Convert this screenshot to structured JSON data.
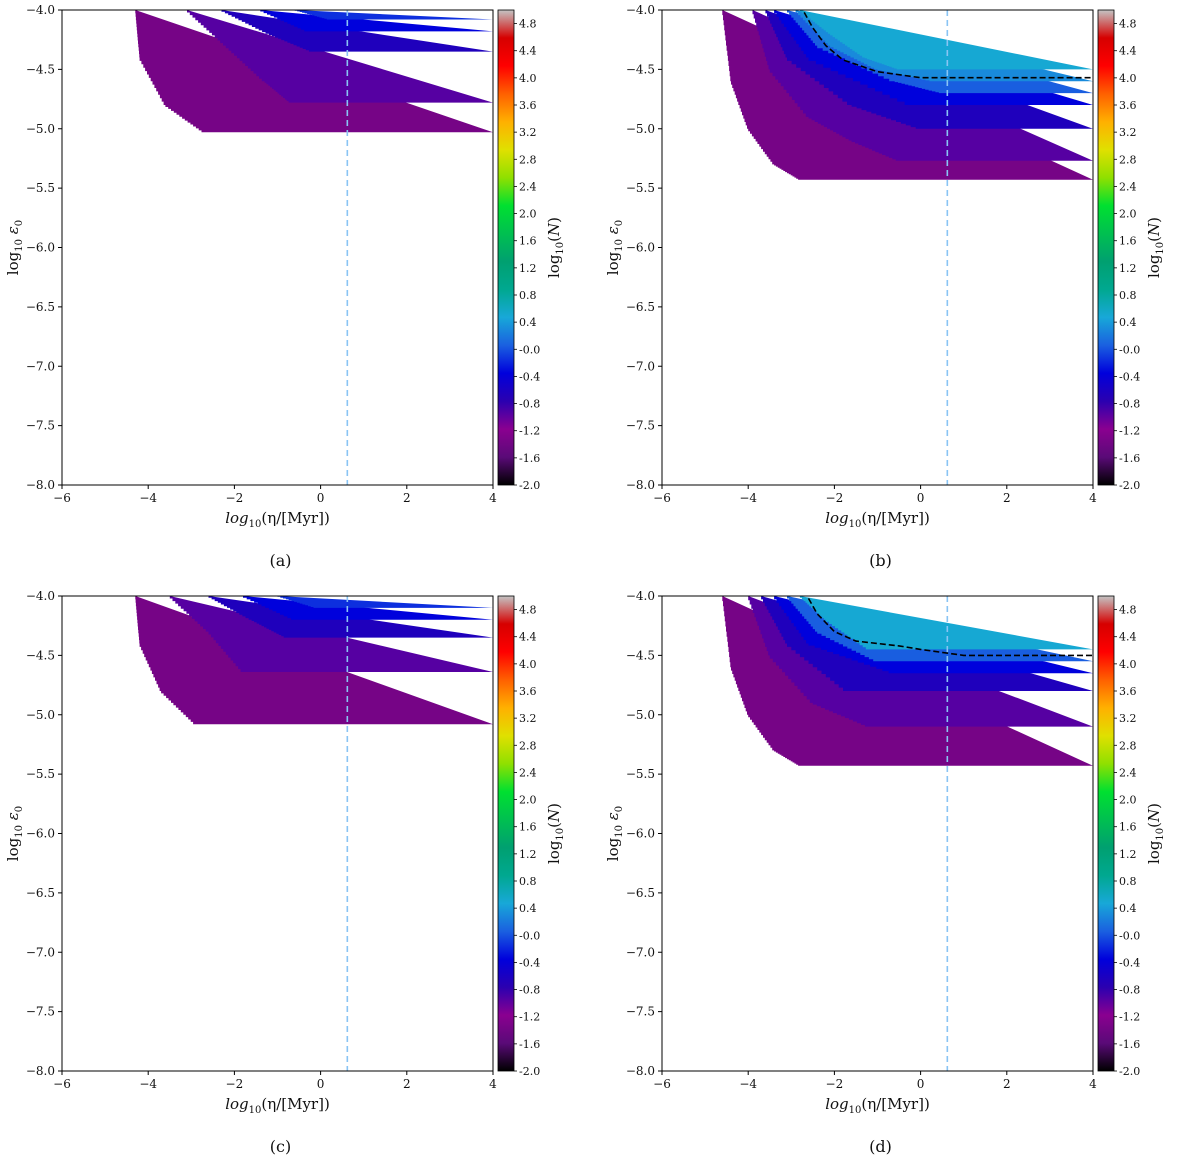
{
  "figure": {
    "colorbar_label": "log10(N)",
    "colormap_colors": [
      "#000000",
      "#5a0a78",
      "#8a0090",
      "#2b00b0",
      "#0000dc",
      "#1a60e0",
      "#18a8d8",
      "#00a890",
      "#00a070",
      "#00c050",
      "#00e030",
      "#90e000",
      "#e0e000",
      "#ffb000",
      "#ff6000",
      "#ff0000",
      "#d60000",
      "#c4c4c4"
    ],
    "contour_color": "#000000",
    "reference_line_color": "#89c4f4"
  },
  "chart_data": [
    {
      "type": "heatmap",
      "panel_label": "(a)",
      "xlabel": "log10(η/[Myr])",
      "ylabel": "log10 ε0",
      "xlim": [
        -6,
        4
      ],
      "ylim": [
        -8,
        -4
      ],
      "xticks": [
        "−6",
        "−4",
        "−2",
        "0",
        "2",
        "4"
      ],
      "yticks": [
        "−8.0",
        "−7.5",
        "−7.0",
        "−6.5",
        "−6.0",
        "−5.5",
        "−5.0",
        "−4.5",
        "−4.0"
      ],
      "clim": [
        -2.0,
        5.0
      ],
      "colorbar_ticks": [
        "4.8",
        "4.4",
        "4.0",
        "3.6",
        "3.2",
        "2.8",
        "2.4",
        "2.0",
        "1.6",
        "1.2",
        "0.8",
        "0.4",
        "-0.0",
        "-0.4",
        "-0.8",
        "-1.2",
        "-1.6",
        "-2.0"
      ],
      "reference_x": 0.62,
      "regions": [
        {
          "log10N": -1.35,
          "y_low": -5.03,
          "edge": [
            [
              -4.0,
              -4.3
            ],
            [
              -4.4,
              -4.2
            ],
            [
              -4.8,
              -3.6
            ],
            [
              -5.03,
              -2.7
            ]
          ]
        },
        {
          "log10N": -0.95,
          "y_low": -4.78,
          "edge": [
            [
              -4.0,
              -3.1
            ],
            [
              -4.3,
              -2.2
            ],
            [
              -4.6,
              -1.3
            ],
            [
              -4.78,
              -0.7
            ]
          ]
        },
        {
          "log10N": -0.65,
          "y_low": -4.35,
          "edge": [
            [
              -4.0,
              -2.3
            ],
            [
              -4.2,
              -1.2
            ],
            [
              -4.35,
              -0.2
            ]
          ]
        },
        {
          "log10N": -0.35,
          "y_low": -4.18,
          "edge": [
            [
              -4.0,
              -1.4
            ],
            [
              -4.18,
              -0.3
            ]
          ]
        },
        {
          "log10N": -0.15,
          "y_low": -4.08,
          "edge": [
            [
              -4.0,
              -0.6
            ],
            [
              -4.08,
              0.2
            ]
          ]
        }
      ],
      "contour": []
    },
    {
      "type": "heatmap",
      "panel_label": "(b)",
      "xlabel": "log10(η/[Myr])",
      "ylabel": "log10 ε0",
      "xlim": [
        -6,
        4
      ],
      "ylim": [
        -8,
        -4
      ],
      "xticks": [
        "−6",
        "−4",
        "−2",
        "0",
        "2",
        "4"
      ],
      "yticks": [
        "−8.0",
        "−7.5",
        "−7.0",
        "−6.5",
        "−6.0",
        "−5.5",
        "−5.0",
        "−4.5",
        "−4.0"
      ],
      "clim": [
        -2.0,
        5.0
      ],
      "colorbar_ticks": [
        "4.8",
        "4.4",
        "4.0",
        "3.6",
        "3.2",
        "2.8",
        "2.4",
        "2.0",
        "1.6",
        "1.2",
        "0.8",
        "0.4",
        "-0.0",
        "-0.4",
        "-0.8",
        "-1.2",
        "-1.6",
        "-2.0"
      ],
      "reference_x": 0.62,
      "regions": [
        {
          "log10N": -1.35,
          "y_low": -5.43,
          "edge": [
            [
              -4.0,
              -4.6
            ],
            [
              -4.6,
              -4.4
            ],
            [
              -5.0,
              -4.0
            ],
            [
              -5.3,
              -3.4
            ],
            [
              -5.43,
              -2.8
            ]
          ]
        },
        {
          "log10N": -0.95,
          "y_low": -5.27,
          "edge": [
            [
              -4.0,
              -3.9
            ],
            [
              -4.5,
              -3.5
            ],
            [
              -4.9,
              -2.6
            ],
            [
              -5.1,
              -1.6
            ],
            [
              -5.27,
              -0.5
            ]
          ]
        },
        {
          "log10N": -0.65,
          "y_low": -5.0,
          "edge": [
            [
              -4.0,
              -3.6
            ],
            [
              -4.4,
              -3.1
            ],
            [
              -4.8,
              -1.6
            ],
            [
              -5.0,
              0.0
            ]
          ]
        },
        {
          "log10N": -0.35,
          "y_low": -4.8,
          "edge": [
            [
              -4.0,
              -3.4
            ],
            [
              -4.4,
              -2.6
            ],
            [
              -4.8,
              -0.2
            ]
          ]
        },
        {
          "log10N": 0.05,
          "y_low": -4.7,
          "edge": [
            [
              -4.0,
              -3.1
            ],
            [
              -4.3,
              -2.4
            ],
            [
              -4.6,
              -0.6
            ],
            [
              -4.7,
              0.5
            ]
          ]
        },
        {
          "log10N": 0.3,
          "y_low": -4.6,
          "edge": [
            [
              -4.0,
              -2.9
            ],
            [
              -4.3,
              -2.1
            ],
            [
              -4.5,
              -1.0
            ],
            [
              -4.6,
              0.3
            ]
          ]
        },
        {
          "log10N": 0.5,
          "y_low": -4.5,
          "edge": [
            [
              -4.0,
              -2.8
            ],
            [
              -4.2,
              -2.1
            ],
            [
              -4.4,
              -1.3
            ],
            [
              -4.5,
              -0.5
            ]
          ]
        }
      ],
      "contour": [
        [
          -2.7,
          -4.02
        ],
        [
          -2.5,
          -4.15
        ],
        [
          -2.2,
          -4.3
        ],
        [
          -1.8,
          -4.42
        ],
        [
          -1.0,
          -4.52
        ],
        [
          0.0,
          -4.57
        ],
        [
          2.0,
          -4.57
        ],
        [
          4.0,
          -4.57
        ]
      ]
    },
    {
      "type": "heatmap",
      "panel_label": "(c)",
      "xlabel": "log10(η/[Myr])",
      "ylabel": "log10 ε0",
      "xlim": [
        -6,
        4
      ],
      "ylim": [
        -8,
        -4
      ],
      "xticks": [
        "−6",
        "−4",
        "−2",
        "0",
        "2",
        "4"
      ],
      "yticks": [
        "−8.0",
        "−7.5",
        "−7.0",
        "−6.5",
        "−6.0",
        "−5.5",
        "−5.0",
        "−4.5",
        "−4.0"
      ],
      "clim": [
        -2.0,
        5.0
      ],
      "colorbar_ticks": [
        "4.8",
        "4.4",
        "4.0",
        "3.6",
        "3.2",
        "2.8",
        "2.4",
        "2.0",
        "1.6",
        "1.2",
        "0.8",
        "0.4",
        "-0.0",
        "-0.4",
        "-0.8",
        "-1.2",
        "-1.6",
        "-2.0"
      ],
      "reference_x": 0.62,
      "regions": [
        {
          "log10N": -1.35,
          "y_low": -5.08,
          "edge": [
            [
              -4.0,
              -4.3
            ],
            [
              -4.4,
              -4.2
            ],
            [
              -4.8,
              -3.7
            ],
            [
              -5.08,
              -2.9
            ]
          ]
        },
        {
          "log10N": -0.95,
          "y_low": -4.64,
          "edge": [
            [
              -4.0,
              -3.5
            ],
            [
              -4.3,
              -2.6
            ],
            [
              -4.64,
              -1.8
            ]
          ]
        },
        {
          "log10N": -0.65,
          "y_low": -4.35,
          "edge": [
            [
              -4.0,
              -2.6
            ],
            [
              -4.2,
              -1.6
            ],
            [
              -4.35,
              -0.8
            ]
          ]
        },
        {
          "log10N": -0.35,
          "y_low": -4.2,
          "edge": [
            [
              -4.0,
              -1.8
            ],
            [
              -4.2,
              -0.6
            ]
          ]
        },
        {
          "log10N": -0.15,
          "y_low": -4.1,
          "edge": [
            [
              -4.0,
              -1.0
            ],
            [
              -4.1,
              -0.1
            ]
          ]
        }
      ],
      "contour": []
    },
    {
      "type": "heatmap",
      "panel_label": "(d)",
      "xlabel": "log10(η/[Myr])",
      "ylabel": "log10 ε0",
      "xlim": [
        -6,
        4
      ],
      "ylim": [
        -8,
        -4
      ],
      "xticks": [
        "−6",
        "−4",
        "−2",
        "0",
        "2",
        "4"
      ],
      "yticks": [
        "−8.0",
        "−7.5",
        "−7.0",
        "−6.5",
        "−6.0",
        "−5.5",
        "−5.0",
        "−4.5",
        "−4.0"
      ],
      "clim": [
        -2.0,
        5.0
      ],
      "colorbar_ticks": [
        "4.8",
        "4.4",
        "4.0",
        "3.6",
        "3.2",
        "2.8",
        "2.4",
        "2.0",
        "1.6",
        "1.2",
        "0.8",
        "0.4",
        "-0.0",
        "-0.4",
        "-0.8",
        "-1.2",
        "-1.6",
        "-2.0"
      ],
      "reference_x": 0.62,
      "regions": [
        {
          "log10N": -1.35,
          "y_low": -5.43,
          "edge": [
            [
              -4.0,
              -4.6
            ],
            [
              -4.6,
              -4.4
            ],
            [
              -5.0,
              -4.0
            ],
            [
              -5.3,
              -3.4
            ],
            [
              -5.43,
              -2.8
            ]
          ]
        },
        {
          "log10N": -0.95,
          "y_low": -5.1,
          "edge": [
            [
              -4.0,
              -4.0
            ],
            [
              -4.5,
              -3.5
            ],
            [
              -4.9,
              -2.5
            ],
            [
              -5.1,
              -1.2
            ]
          ]
        },
        {
          "log10N": -0.65,
          "y_low": -4.8,
          "edge": [
            [
              -4.0,
              -3.7
            ],
            [
              -4.4,
              -3.1
            ],
            [
              -4.8,
              -1.7
            ]
          ]
        },
        {
          "log10N": -0.35,
          "y_low": -4.65,
          "edge": [
            [
              -4.0,
              -3.4
            ],
            [
              -4.4,
              -2.6
            ],
            [
              -4.65,
              -0.6
            ]
          ]
        },
        {
          "log10N": 0.05,
          "y_low": -4.55,
          "edge": [
            [
              -4.0,
              -3.1
            ],
            [
              -4.3,
              -2.4
            ],
            [
              -4.55,
              -1.0
            ]
          ]
        },
        {
          "log10N": 0.5,
          "y_low": -4.45,
          "edge": [
            [
              -4.0,
              -2.8
            ],
            [
              -4.2,
              -2.2
            ],
            [
              -4.45,
              -1.2
            ]
          ]
        }
      ],
      "contour": [
        [
          -2.6,
          -4.02
        ],
        [
          -2.4,
          -4.15
        ],
        [
          -2.0,
          -4.3
        ],
        [
          -1.5,
          -4.38
        ],
        [
          -0.5,
          -4.42
        ],
        [
          0.0,
          -4.45
        ],
        [
          1.0,
          -4.5
        ],
        [
          4.0,
          -4.5
        ]
      ]
    }
  ]
}
